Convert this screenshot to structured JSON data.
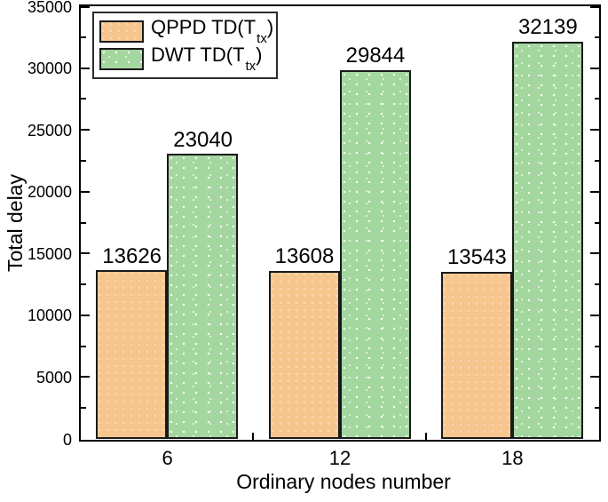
{
  "figure": {
    "background": "#ffffff",
    "axis_color": "#000000",
    "text_color": "#000000"
  },
  "chart_data": {
    "type": "bar",
    "title": "",
    "xlabel": "Ordinary nodes number",
    "ylabel": "Total delay",
    "categories": [
      "6",
      "12",
      "18"
    ],
    "series": [
      {
        "name": "QPPD TD(Ttx)",
        "label_parts": {
          "prefix": "QPPD TD(T",
          "sub": "tx",
          "suffix": ")"
        },
        "color": "#F7C68F",
        "texture": "tex-grain",
        "values": [
          13626,
          13608,
          13543
        ]
      },
      {
        "name": "DWT TD(Ttx)",
        "label_parts": {
          "prefix": "DWT TD(T",
          "sub": "tx",
          "suffix": ")"
        },
        "color": "#A4D69F",
        "texture": "tex-dots",
        "values": [
          23040,
          29844,
          32139
        ]
      }
    ],
    "ylim": [
      0,
      35000
    ],
    "ytick_step": 5000,
    "yminor_step": 2500,
    "ytick_labels": [
      "0",
      "5000",
      "10000",
      "15000",
      "20000",
      "25000",
      "30000",
      "35000"
    ],
    "grid": false,
    "legend_position": "top-left",
    "bar_border_color": "#1a1a1a",
    "value_labels_shown": true
  }
}
